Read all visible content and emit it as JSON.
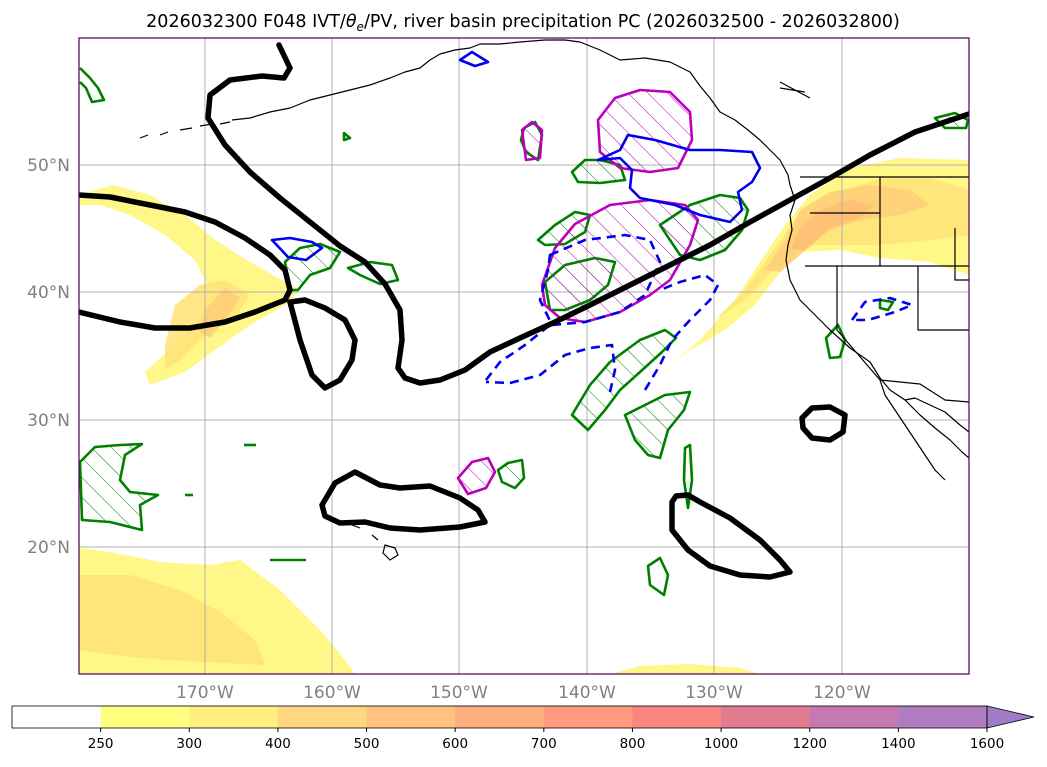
{
  "chart_data": {
    "type": "map",
    "title": "2026032300 F048 IVT/θₑ/PV, river basin precipitation PC (2026032500 - 2026032800)",
    "title_parts": {
      "prefix": "2026032300 F048 IVT/",
      "theta": "θ",
      "theta_sub": "e",
      "suffix": "/PV, river basin precipitation PC (2026032500 - 2026032800)"
    },
    "lon_range": [
      -180,
      -110
    ],
    "lat_range": [
      10,
      60
    ],
    "lon_ticks": [
      -170,
      -160,
      -150,
      -140,
      -130,
      -120
    ],
    "lon_tick_labels": [
      "170°W",
      "160°W",
      "150°W",
      "140°W",
      "130°W",
      "120°W"
    ],
    "lat_ticks": [
      20,
      30,
      40,
      50
    ],
    "lat_tick_labels": [
      "20°N",
      "30°N",
      "40°N",
      "50°N"
    ],
    "grid": true,
    "colorbar": {
      "levels": [
        250,
        300,
        400,
        500,
        600,
        700,
        800,
        1000,
        1200,
        1400,
        1600
      ],
      "labels": [
        "250",
        "300",
        "400",
        "500",
        "600",
        "700",
        "800",
        "1000",
        "1200",
        "1400",
        "1600"
      ],
      "colors": [
        "#ffffff",
        "#ffff80",
        "#ffee80",
        "#ffd780",
        "#ffc37f",
        "#ffae7f",
        "#ff9980",
        "#fa8680",
        "#e07b90",
        "#c878b0",
        "#b07cc0",
        "#a07cc8"
      ],
      "extend": "max"
    },
    "ivt_fill_colors": [
      "#fff67a",
      "#ffe37a",
      "#ffcc78",
      "#ffb575"
    ],
    "contour_colors": {
      "pv": "#000000",
      "theta_e_solid": "#0000ee",
      "theta_e_dashed": "#0000ee",
      "precip_green": "#008000",
      "precip_magenta": "#bb00bb",
      "coast": "#000000",
      "frame": "#4b0050"
    }
  }
}
